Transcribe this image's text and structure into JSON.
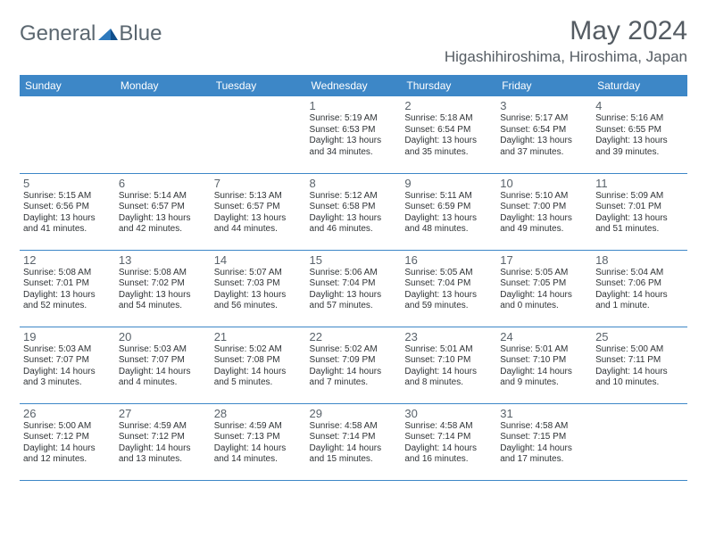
{
  "brand": {
    "part1": "General",
    "part2": "Blue"
  },
  "title": "May 2024",
  "location": "Higashihiroshima, Hiroshima, Japan",
  "theme": {
    "header_bg": "#3d87c7",
    "header_fg": "#ffffff",
    "border_color": "#3d87c7",
    "text_color": "#2f3336",
    "muted_color": "#5a636b",
    "logo_color": "#5b6770",
    "day_fontsize": 13,
    "info_fontsize": 10
  },
  "weekdays": [
    "Sunday",
    "Monday",
    "Tuesday",
    "Wednesday",
    "Thursday",
    "Friday",
    "Saturday"
  ],
  "weeks": [
    [
      null,
      null,
      null,
      {
        "n": "1",
        "sr": "Sunrise: 5:19 AM",
        "ss": "Sunset: 6:53 PM",
        "d1": "Daylight: 13 hours",
        "d2": "and 34 minutes."
      },
      {
        "n": "2",
        "sr": "Sunrise: 5:18 AM",
        "ss": "Sunset: 6:54 PM",
        "d1": "Daylight: 13 hours",
        "d2": "and 35 minutes."
      },
      {
        "n": "3",
        "sr": "Sunrise: 5:17 AM",
        "ss": "Sunset: 6:54 PM",
        "d1": "Daylight: 13 hours",
        "d2": "and 37 minutes."
      },
      {
        "n": "4",
        "sr": "Sunrise: 5:16 AM",
        "ss": "Sunset: 6:55 PM",
        "d1": "Daylight: 13 hours",
        "d2": "and 39 minutes."
      }
    ],
    [
      {
        "n": "5",
        "sr": "Sunrise: 5:15 AM",
        "ss": "Sunset: 6:56 PM",
        "d1": "Daylight: 13 hours",
        "d2": "and 41 minutes."
      },
      {
        "n": "6",
        "sr": "Sunrise: 5:14 AM",
        "ss": "Sunset: 6:57 PM",
        "d1": "Daylight: 13 hours",
        "d2": "and 42 minutes."
      },
      {
        "n": "7",
        "sr": "Sunrise: 5:13 AM",
        "ss": "Sunset: 6:57 PM",
        "d1": "Daylight: 13 hours",
        "d2": "and 44 minutes."
      },
      {
        "n": "8",
        "sr": "Sunrise: 5:12 AM",
        "ss": "Sunset: 6:58 PM",
        "d1": "Daylight: 13 hours",
        "d2": "and 46 minutes."
      },
      {
        "n": "9",
        "sr": "Sunrise: 5:11 AM",
        "ss": "Sunset: 6:59 PM",
        "d1": "Daylight: 13 hours",
        "d2": "and 48 minutes."
      },
      {
        "n": "10",
        "sr": "Sunrise: 5:10 AM",
        "ss": "Sunset: 7:00 PM",
        "d1": "Daylight: 13 hours",
        "d2": "and 49 minutes."
      },
      {
        "n": "11",
        "sr": "Sunrise: 5:09 AM",
        "ss": "Sunset: 7:01 PM",
        "d1": "Daylight: 13 hours",
        "d2": "and 51 minutes."
      }
    ],
    [
      {
        "n": "12",
        "sr": "Sunrise: 5:08 AM",
        "ss": "Sunset: 7:01 PM",
        "d1": "Daylight: 13 hours",
        "d2": "and 52 minutes."
      },
      {
        "n": "13",
        "sr": "Sunrise: 5:08 AM",
        "ss": "Sunset: 7:02 PM",
        "d1": "Daylight: 13 hours",
        "d2": "and 54 minutes."
      },
      {
        "n": "14",
        "sr": "Sunrise: 5:07 AM",
        "ss": "Sunset: 7:03 PM",
        "d1": "Daylight: 13 hours",
        "d2": "and 56 minutes."
      },
      {
        "n": "15",
        "sr": "Sunrise: 5:06 AM",
        "ss": "Sunset: 7:04 PM",
        "d1": "Daylight: 13 hours",
        "d2": "and 57 minutes."
      },
      {
        "n": "16",
        "sr": "Sunrise: 5:05 AM",
        "ss": "Sunset: 7:04 PM",
        "d1": "Daylight: 13 hours",
        "d2": "and 59 minutes."
      },
      {
        "n": "17",
        "sr": "Sunrise: 5:05 AM",
        "ss": "Sunset: 7:05 PM",
        "d1": "Daylight: 14 hours",
        "d2": "and 0 minutes."
      },
      {
        "n": "18",
        "sr": "Sunrise: 5:04 AM",
        "ss": "Sunset: 7:06 PM",
        "d1": "Daylight: 14 hours",
        "d2": "and 1 minute."
      }
    ],
    [
      {
        "n": "19",
        "sr": "Sunrise: 5:03 AM",
        "ss": "Sunset: 7:07 PM",
        "d1": "Daylight: 14 hours",
        "d2": "and 3 minutes."
      },
      {
        "n": "20",
        "sr": "Sunrise: 5:03 AM",
        "ss": "Sunset: 7:07 PM",
        "d1": "Daylight: 14 hours",
        "d2": "and 4 minutes."
      },
      {
        "n": "21",
        "sr": "Sunrise: 5:02 AM",
        "ss": "Sunset: 7:08 PM",
        "d1": "Daylight: 14 hours",
        "d2": "and 5 minutes."
      },
      {
        "n": "22",
        "sr": "Sunrise: 5:02 AM",
        "ss": "Sunset: 7:09 PM",
        "d1": "Daylight: 14 hours",
        "d2": "and 7 minutes."
      },
      {
        "n": "23",
        "sr": "Sunrise: 5:01 AM",
        "ss": "Sunset: 7:10 PM",
        "d1": "Daylight: 14 hours",
        "d2": "and 8 minutes."
      },
      {
        "n": "24",
        "sr": "Sunrise: 5:01 AM",
        "ss": "Sunset: 7:10 PM",
        "d1": "Daylight: 14 hours",
        "d2": "and 9 minutes."
      },
      {
        "n": "25",
        "sr": "Sunrise: 5:00 AM",
        "ss": "Sunset: 7:11 PM",
        "d1": "Daylight: 14 hours",
        "d2": "and 10 minutes."
      }
    ],
    [
      {
        "n": "26",
        "sr": "Sunrise: 5:00 AM",
        "ss": "Sunset: 7:12 PM",
        "d1": "Daylight: 14 hours",
        "d2": "and 12 minutes."
      },
      {
        "n": "27",
        "sr": "Sunrise: 4:59 AM",
        "ss": "Sunset: 7:12 PM",
        "d1": "Daylight: 14 hours",
        "d2": "and 13 minutes."
      },
      {
        "n": "28",
        "sr": "Sunrise: 4:59 AM",
        "ss": "Sunset: 7:13 PM",
        "d1": "Daylight: 14 hours",
        "d2": "and 14 minutes."
      },
      {
        "n": "29",
        "sr": "Sunrise: 4:58 AM",
        "ss": "Sunset: 7:14 PM",
        "d1": "Daylight: 14 hours",
        "d2": "and 15 minutes."
      },
      {
        "n": "30",
        "sr": "Sunrise: 4:58 AM",
        "ss": "Sunset: 7:14 PM",
        "d1": "Daylight: 14 hours",
        "d2": "and 16 minutes."
      },
      {
        "n": "31",
        "sr": "Sunrise: 4:58 AM",
        "ss": "Sunset: 7:15 PM",
        "d1": "Daylight: 14 hours",
        "d2": "and 17 minutes."
      },
      null
    ]
  ]
}
